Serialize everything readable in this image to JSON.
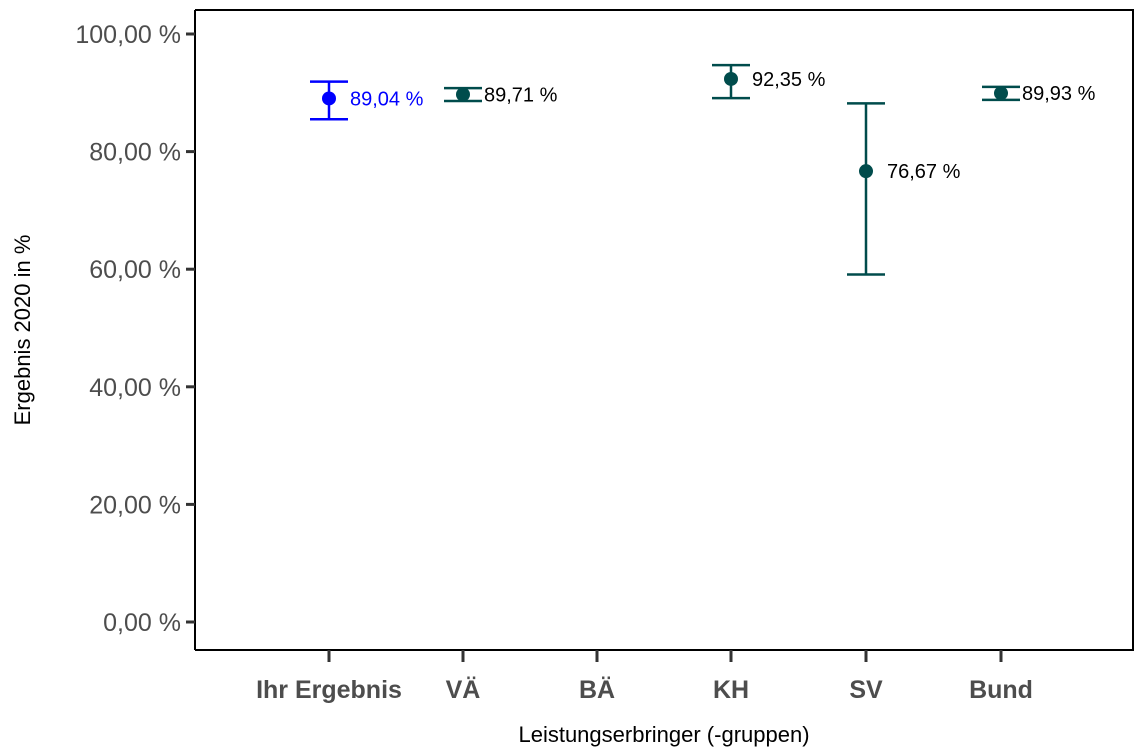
{
  "chart_data": {
    "type": "scatter",
    "title": "",
    "xlabel": "Leistungserbringer (-gruppen)",
    "ylabel": "Ergebnis 2020 in %",
    "ylim": [
      -4,
      104
    ],
    "yticks": [
      0,
      20,
      40,
      60,
      80,
      100
    ],
    "ytick_labels": [
      "0,00 %",
      "20,00 %",
      "40,00 %",
      "60,00 %",
      "80,00 %",
      "100,00 %"
    ],
    "categories": [
      "Ihr Ergebnis",
      "VÄ",
      "BÄ",
      "KH",
      "SV",
      "Bund"
    ],
    "grid": false,
    "points": [
      {
        "category": "Ihr Ergebnis",
        "value": 89.04,
        "lower": 85.5,
        "upper": 91.9,
        "label": "89,04 %",
        "color": "#0000ff"
      },
      {
        "category": "VÄ",
        "value": 89.71,
        "lower": 88.6,
        "upper": 90.8,
        "label": "89,71 %",
        "color": "#004c4c"
      },
      {
        "category": "KH",
        "value": 92.35,
        "lower": 89.1,
        "upper": 94.7,
        "label": "92,35 %",
        "color": "#004c4c"
      },
      {
        "category": "SV",
        "value": 76.67,
        "lower": 59.1,
        "upper": 88.2,
        "label": "76,67 %",
        "color": "#004c4c"
      },
      {
        "category": "Bund",
        "value": 89.93,
        "lower": 88.8,
        "upper": 91.0,
        "label": "89,93 %",
        "color": "#004c4c"
      }
    ]
  }
}
